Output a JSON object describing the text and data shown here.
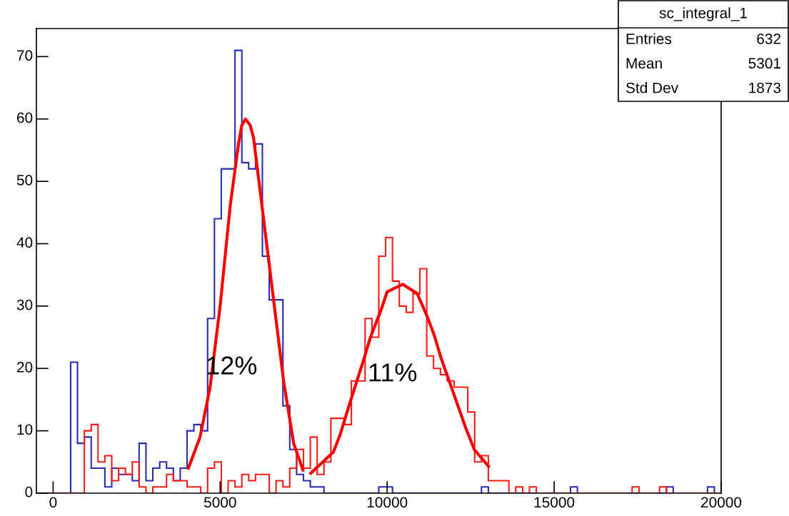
{
  "chart_data": {
    "type": "histogram",
    "bins": [
      -500,
      -295,
      -90,
      115,
      320,
      525,
      730,
      935,
      1140,
      1345,
      1550,
      1755,
      1960,
      2165,
      2370,
      2575,
      2780,
      2985,
      3190,
      3395,
      3600,
      3805,
      4010,
      4215,
      4420,
      4625,
      4830,
      5035,
      5240,
      5445,
      5650,
      5855,
      6060,
      6265,
      6470,
      6675,
      6880,
      7085,
      7290,
      7495,
      7700,
      7905,
      8110,
      8315,
      8520,
      8725,
      8930,
      9135,
      9340,
      9545,
      9750,
      9955,
      10160,
      10365,
      10570,
      10775,
      10980,
      11185,
      11390,
      11595,
      11800,
      12005,
      12210,
      12415,
      12620,
      12825,
      13030,
      13235,
      13440,
      13645,
      13850,
      14055,
      14260,
      14465,
      14670,
      14875,
      15080,
      15285,
      15490,
      15695,
      15900,
      16105,
      16310,
      16515,
      16720,
      16925,
      17130,
      17335,
      17540,
      17745,
      17950,
      18155,
      18360,
      18565,
      18770,
      18975,
      19180,
      19385,
      19590,
      19795,
      20000
    ],
    "series": [
      {
        "color": "#2b2bb0",
        "values": [
          0,
          0,
          0,
          0,
          0,
          21,
          8,
          9,
          4,
          4,
          1,
          4,
          3,
          3,
          2,
          8,
          2,
          4,
          5,
          4,
          2,
          4,
          10,
          11,
          10,
          28,
          44,
          52,
          52,
          71,
          53,
          52,
          56,
          38,
          31,
          31,
          14,
          7,
          3,
          2,
          1,
          1,
          0,
          0,
          0,
          0,
          0,
          0,
          0,
          0,
          1,
          1,
          0,
          0,
          0,
          0,
          0,
          0,
          0,
          0,
          0,
          0,
          0,
          0,
          0,
          1,
          0,
          0,
          0,
          0,
          0,
          0,
          0,
          0,
          0,
          0,
          0,
          0,
          1,
          0,
          0,
          0,
          0,
          0,
          0,
          0,
          0,
          0,
          0,
          0,
          0,
          0,
          1,
          0,
          0,
          0,
          0,
          0,
          1,
          0
        ]
      },
      {
        "color": "#ff1a1a",
        "values": [
          0,
          0,
          0,
          0,
          0,
          0,
          0,
          10,
          11,
          5,
          6,
          2,
          4,
          3,
          5,
          1,
          0,
          1,
          1,
          3,
          2,
          2,
          1,
          1,
          0,
          4,
          5,
          0,
          2,
          1,
          3,
          2,
          3,
          3,
          0,
          2,
          1,
          4,
          7,
          4,
          9,
          3,
          5,
          12,
          12,
          11,
          18,
          18,
          28,
          25,
          38,
          41,
          34,
          30,
          29,
          32,
          36,
          22,
          20,
          19,
          18,
          17,
          17,
          13,
          5,
          6,
          2,
          2,
          2,
          0,
          1,
          0,
          1,
          0,
          0,
          0,
          0,
          0,
          0,
          0,
          0,
          0,
          0,
          0,
          0,
          0,
          0,
          1,
          0,
          0,
          0,
          1,
          0,
          0,
          0,
          0,
          0,
          0,
          0,
          0
        ]
      },
      {
        "type": "line",
        "color": "#ff0000",
        "x": [
          4050,
          4400,
          4700,
          5000,
          5300,
          5550,
          5650,
          5760,
          5900,
          6000,
          6300,
          6600,
          6900,
          7200,
          7480
        ],
        "values": [
          4,
          9,
          17,
          30,
          46,
          56,
          59,
          60,
          59,
          57,
          44,
          31,
          18,
          8,
          3.7
        ]
      },
      {
        "type": "line",
        "color": "#ff0000",
        "x": [
          7714,
          8393,
          8600,
          8893,
          9321,
          9500,
          9821,
          10000,
          10464,
          10900,
          11179,
          11400,
          11607,
          12107,
          12350,
          12607,
          13036
        ],
        "values": [
          3.2,
          6.6,
          9.5,
          14.6,
          21.8,
          25,
          29.4,
          32.3,
          33.5,
          32,
          28.6,
          25.5,
          21.8,
          14.2,
          10.5,
          7,
          4.3
        ]
      }
    ],
    "xlim": [
      -500,
      20000
    ],
    "xticks": [
      0,
      5000,
      10000,
      15000,
      20000
    ],
    "ylim": [
      0,
      74.5
    ],
    "yticks": [
      0,
      10,
      20,
      30,
      40,
      50,
      60,
      70
    ],
    "annotations": [
      "12%",
      "11%",
      "sc_integral_1",
      "Entries",
      "632",
      "Mean",
      "5301",
      "Std Dev",
      "1873"
    ]
  }
}
